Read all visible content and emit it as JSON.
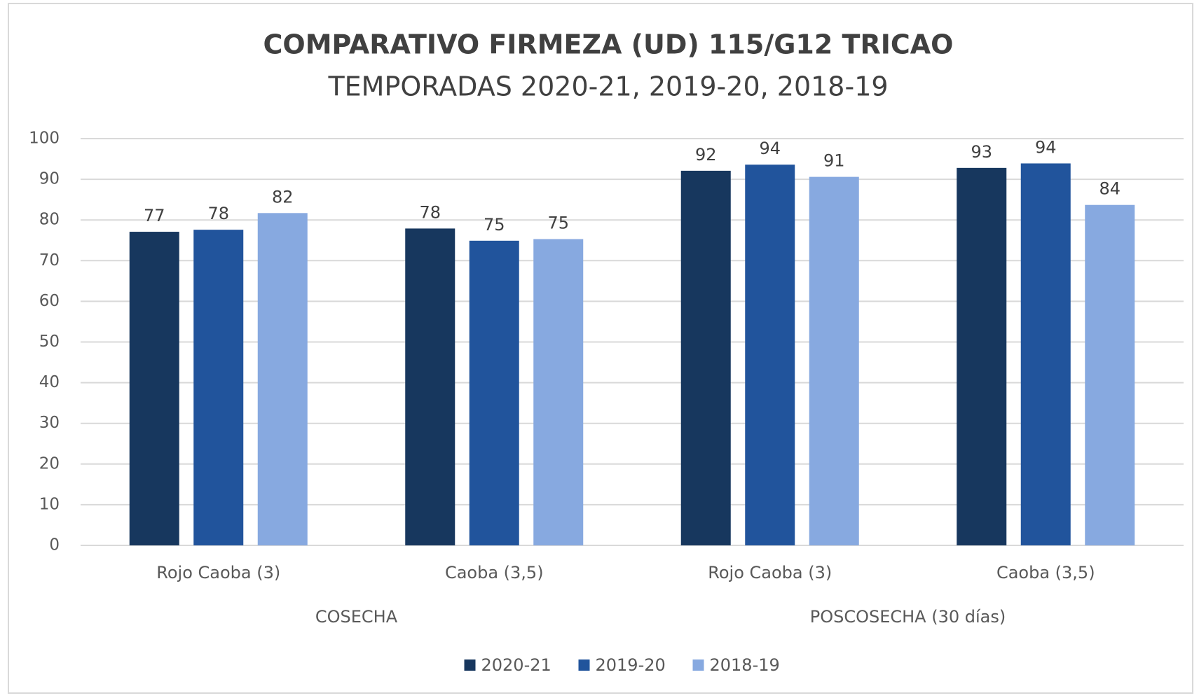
{
  "chart_data": {
    "type": "bar",
    "title": "COMPARATIVO FIRMEZA (UD) 115/G12  TRICAO",
    "subtitle": "TEMPORADAS 2020-21, 2019-20, 2018-19",
    "groups": [
      {
        "name": "COSECHA",
        "categories": [
          "Rojo Caoba (3)",
          "Caoba (3,5)"
        ]
      },
      {
        "name": "POSCOSECHA (30 días)",
        "categories": [
          "Rojo Caoba (3)",
          "Caoba (3,5)"
        ]
      }
    ],
    "series": [
      {
        "name": "2020-21",
        "color": "#17375e",
        "values": [
          77.1,
          77.9,
          92.1,
          92.8
        ],
        "value_labels": [
          "77",
          "78",
          "92",
          "93"
        ]
      },
      {
        "name": "2019-20",
        "color": "#21549c",
        "values": [
          77.6,
          74.9,
          93.6,
          93.9
        ],
        "value_labels": [
          "78",
          "75",
          "94",
          "94"
        ]
      },
      {
        "name": "2018-19",
        "color": "#87a9e0",
        "values": [
          81.7,
          75.3,
          90.6,
          83.7
        ],
        "value_labels": [
          "82",
          "75",
          "91",
          "84"
        ]
      }
    ],
    "ylim": [
      0,
      100
    ],
    "yticks": [
      0,
      10,
      20,
      30,
      40,
      50,
      60,
      70,
      80,
      90,
      100
    ],
    "grid": true,
    "legend": "bottom"
  }
}
